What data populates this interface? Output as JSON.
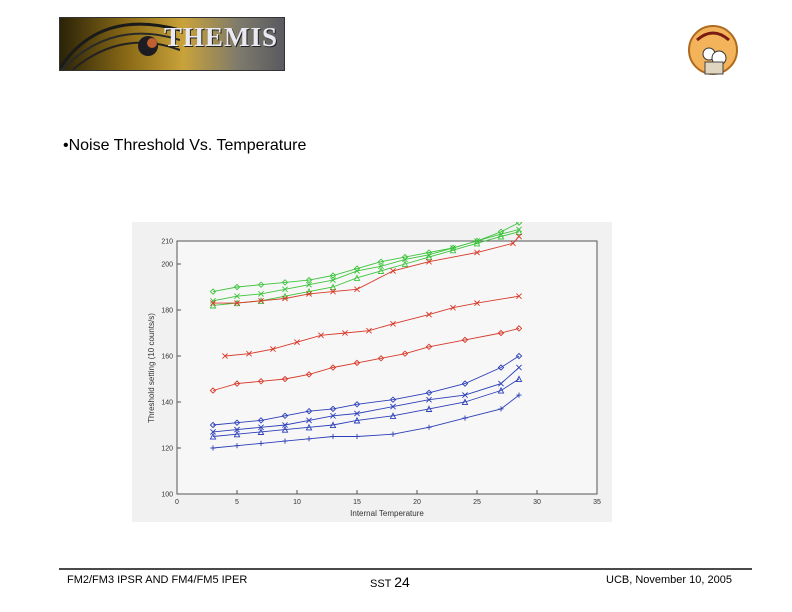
{
  "header": {
    "logo_text": "THEMIS"
  },
  "slide": {
    "bullet": "•Noise Threshold Vs. Temperature"
  },
  "footer": {
    "left": "FM2/FM3 IPSR AND FM4/FM5 IPER",
    "center_label": "SST",
    "page": "24",
    "right": "UCB, November 10, 2005"
  },
  "colors": {
    "green": "#3ec43e",
    "red": "#d83a2a",
    "blue": "#2d3fb8"
  },
  "chart_data": {
    "type": "line",
    "title": "",
    "xlabel": "Internal Temperature",
    "ylabel": "Threshold setting (10 counts/s)",
    "xlim": [
      0,
      35
    ],
    "ylim": [
      100,
      210
    ],
    "xticks": [
      0,
      5,
      10,
      15,
      20,
      25,
      30,
      35
    ],
    "yticks": [
      100,
      120,
      140,
      160,
      180,
      200,
      210
    ],
    "series": [
      {
        "name": "green-1",
        "color": "#3ec43e",
        "marker": "diamond",
        "x": [
          3,
          5,
          7,
          9,
          11,
          13,
          15,
          17,
          19,
          21,
          23,
          25,
          27,
          28.5
        ],
        "y": [
          188,
          190,
          191,
          192,
          193,
          195,
          198,
          201,
          203,
          205,
          207,
          210,
          214,
          218
        ]
      },
      {
        "name": "green-2",
        "color": "#3ec43e",
        "marker": "x",
        "x": [
          3,
          5,
          7,
          9,
          11,
          13,
          15,
          17,
          19,
          21,
          23,
          25,
          27,
          28.5
        ],
        "y": [
          184,
          186,
          187,
          189,
          191,
          193,
          197,
          199,
          202,
          204,
          207,
          210,
          213,
          215
        ]
      },
      {
        "name": "green-3",
        "color": "#3ec43e",
        "marker": "triangle",
        "x": [
          3,
          5,
          7,
          9,
          11,
          13,
          15,
          17,
          19,
          21,
          23,
          25,
          27,
          28.5
        ],
        "y": [
          182,
          183,
          184,
          186,
          188,
          190,
          194,
          197,
          200,
          203,
          206,
          209,
          212,
          214
        ]
      },
      {
        "name": "red-1",
        "color": "#d83a2a",
        "marker": "x",
        "x": [
          3,
          5,
          7,
          9,
          11,
          13,
          15,
          18,
          21,
          25,
          28,
          28.5
        ],
        "y": [
          183,
          183,
          184,
          185,
          187,
          188,
          189,
          197,
          201,
          205,
          209,
          212
        ]
      },
      {
        "name": "red-2",
        "color": "#d83a2a",
        "marker": "x",
        "x": [
          4,
          6,
          8,
          10,
          12,
          14,
          16,
          18,
          21,
          23,
          25,
          28.5
        ],
        "y": [
          160,
          161,
          163,
          166,
          169,
          170,
          171,
          174,
          178,
          181,
          183,
          186
        ]
      },
      {
        "name": "red-3",
        "color": "#d83a2a",
        "marker": "diamond",
        "x": [
          3,
          5,
          7,
          9,
          11,
          13,
          15,
          17,
          19,
          21,
          24,
          27,
          28.5
        ],
        "y": [
          145,
          148,
          149,
          150,
          152,
          155,
          157,
          159,
          161,
          164,
          167,
          170,
          172
        ]
      },
      {
        "name": "blue-1",
        "color": "#2d3fb8",
        "marker": "diamond",
        "x": [
          3,
          5,
          7,
          9,
          11,
          13,
          15,
          18,
          21,
          24,
          27,
          28.5
        ],
        "y": [
          130,
          131,
          132,
          134,
          136,
          137,
          139,
          141,
          144,
          148,
          155,
          160
        ]
      },
      {
        "name": "blue-2",
        "color": "#2d3fb8",
        "marker": "x",
        "x": [
          3,
          5,
          7,
          9,
          11,
          13,
          15,
          18,
          21,
          24,
          27,
          28.5
        ],
        "y": [
          127,
          128,
          129,
          130,
          132,
          134,
          135,
          138,
          141,
          143,
          148,
          155
        ]
      },
      {
        "name": "blue-3",
        "color": "#2d3fb8",
        "marker": "triangle",
        "x": [
          3,
          5,
          7,
          9,
          11,
          13,
          15,
          18,
          21,
          24,
          27,
          28.5
        ],
        "y": [
          125,
          126,
          127,
          128,
          129,
          130,
          132,
          134,
          137,
          140,
          145,
          150
        ]
      },
      {
        "name": "blue-4",
        "color": "#2d3fb8",
        "marker": "plus",
        "x": [
          3,
          5,
          7,
          9,
          11,
          13,
          15,
          18,
          21,
          24,
          27,
          28.5
        ],
        "y": [
          120,
          121,
          122,
          123,
          124,
          125,
          125,
          126,
          129,
          133,
          137,
          143
        ]
      }
    ]
  }
}
